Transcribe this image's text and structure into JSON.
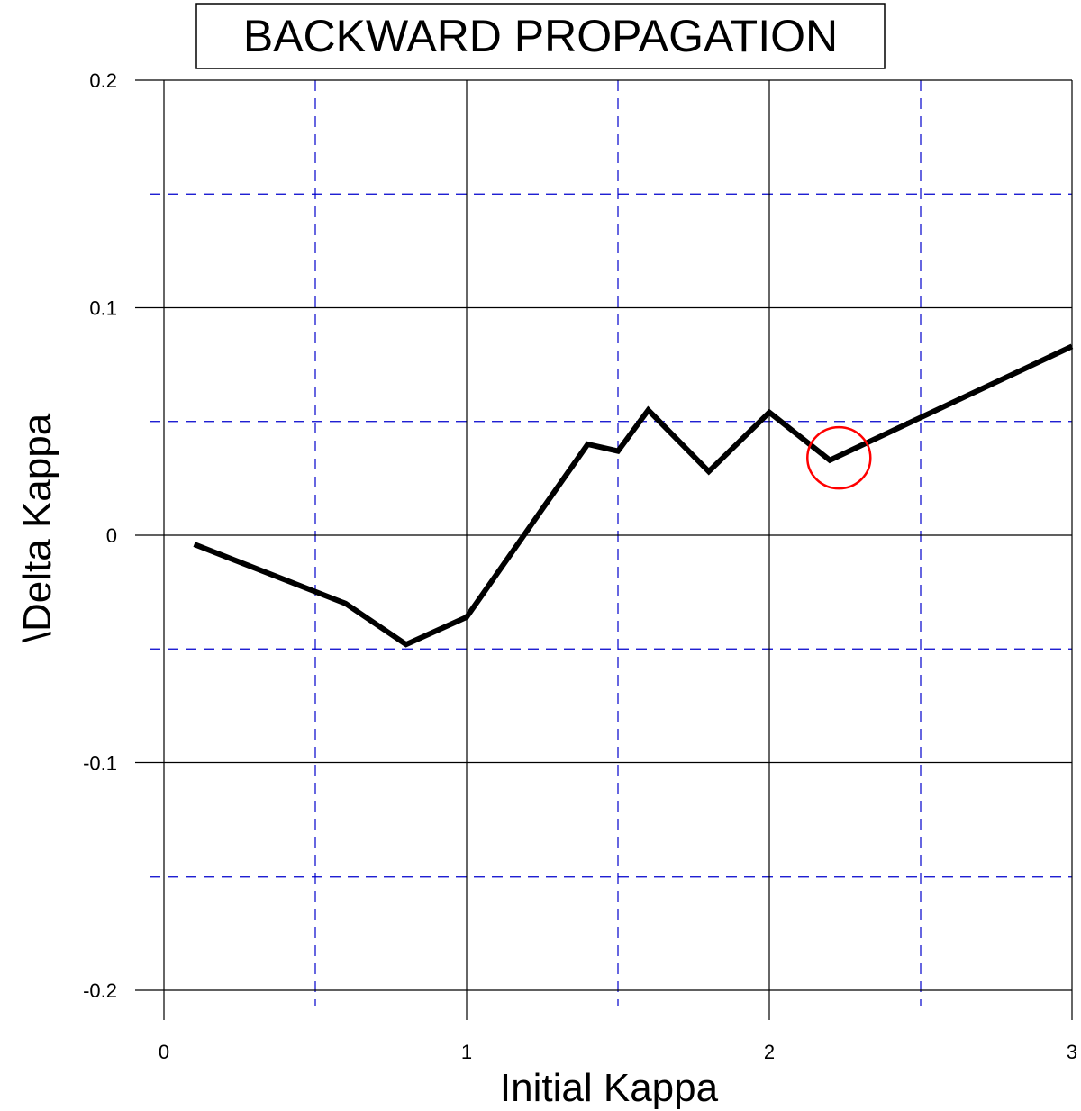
{
  "chart_data": {
    "type": "line",
    "title": "BACKWARD PROPAGATION",
    "xlabel": "Initial Kappa",
    "ylabel": "\\Delta Kappa",
    "xlim": [
      0,
      3
    ],
    "ylim": [
      -0.2,
      0.2
    ],
    "x_ticks": [
      0,
      1,
      2,
      3
    ],
    "x_tick_labels": [
      "0",
      "1",
      "2",
      "3"
    ],
    "y_ticks": [
      0.2,
      0.1,
      0,
      -0.1,
      -0.2
    ],
    "y_tick_labels": [
      "0.2",
      "0.1",
      "0",
      "-0.1",
      "-0.2"
    ],
    "grid": {
      "major": "on",
      "minor": "on",
      "major_color": "#000000",
      "minor_color": "#0000cc",
      "minor_style": "dashed"
    },
    "series": [
      {
        "color": "#000000",
        "x": [
          0.1,
          0.6,
          0.8,
          1.0,
          1.4,
          1.5,
          1.6,
          1.8,
          2.0,
          2.2,
          3.0
        ],
        "y": [
          -0.004,
          -0.03,
          -0.048,
          -0.036,
          0.04,
          0.037,
          0.055,
          0.028,
          0.054,
          0.033,
          0.083
        ]
      }
    ],
    "annotations": [
      {
        "type": "circle",
        "color": "#ff0000",
        "x": 2.23,
        "y": 0.034
      }
    ]
  }
}
